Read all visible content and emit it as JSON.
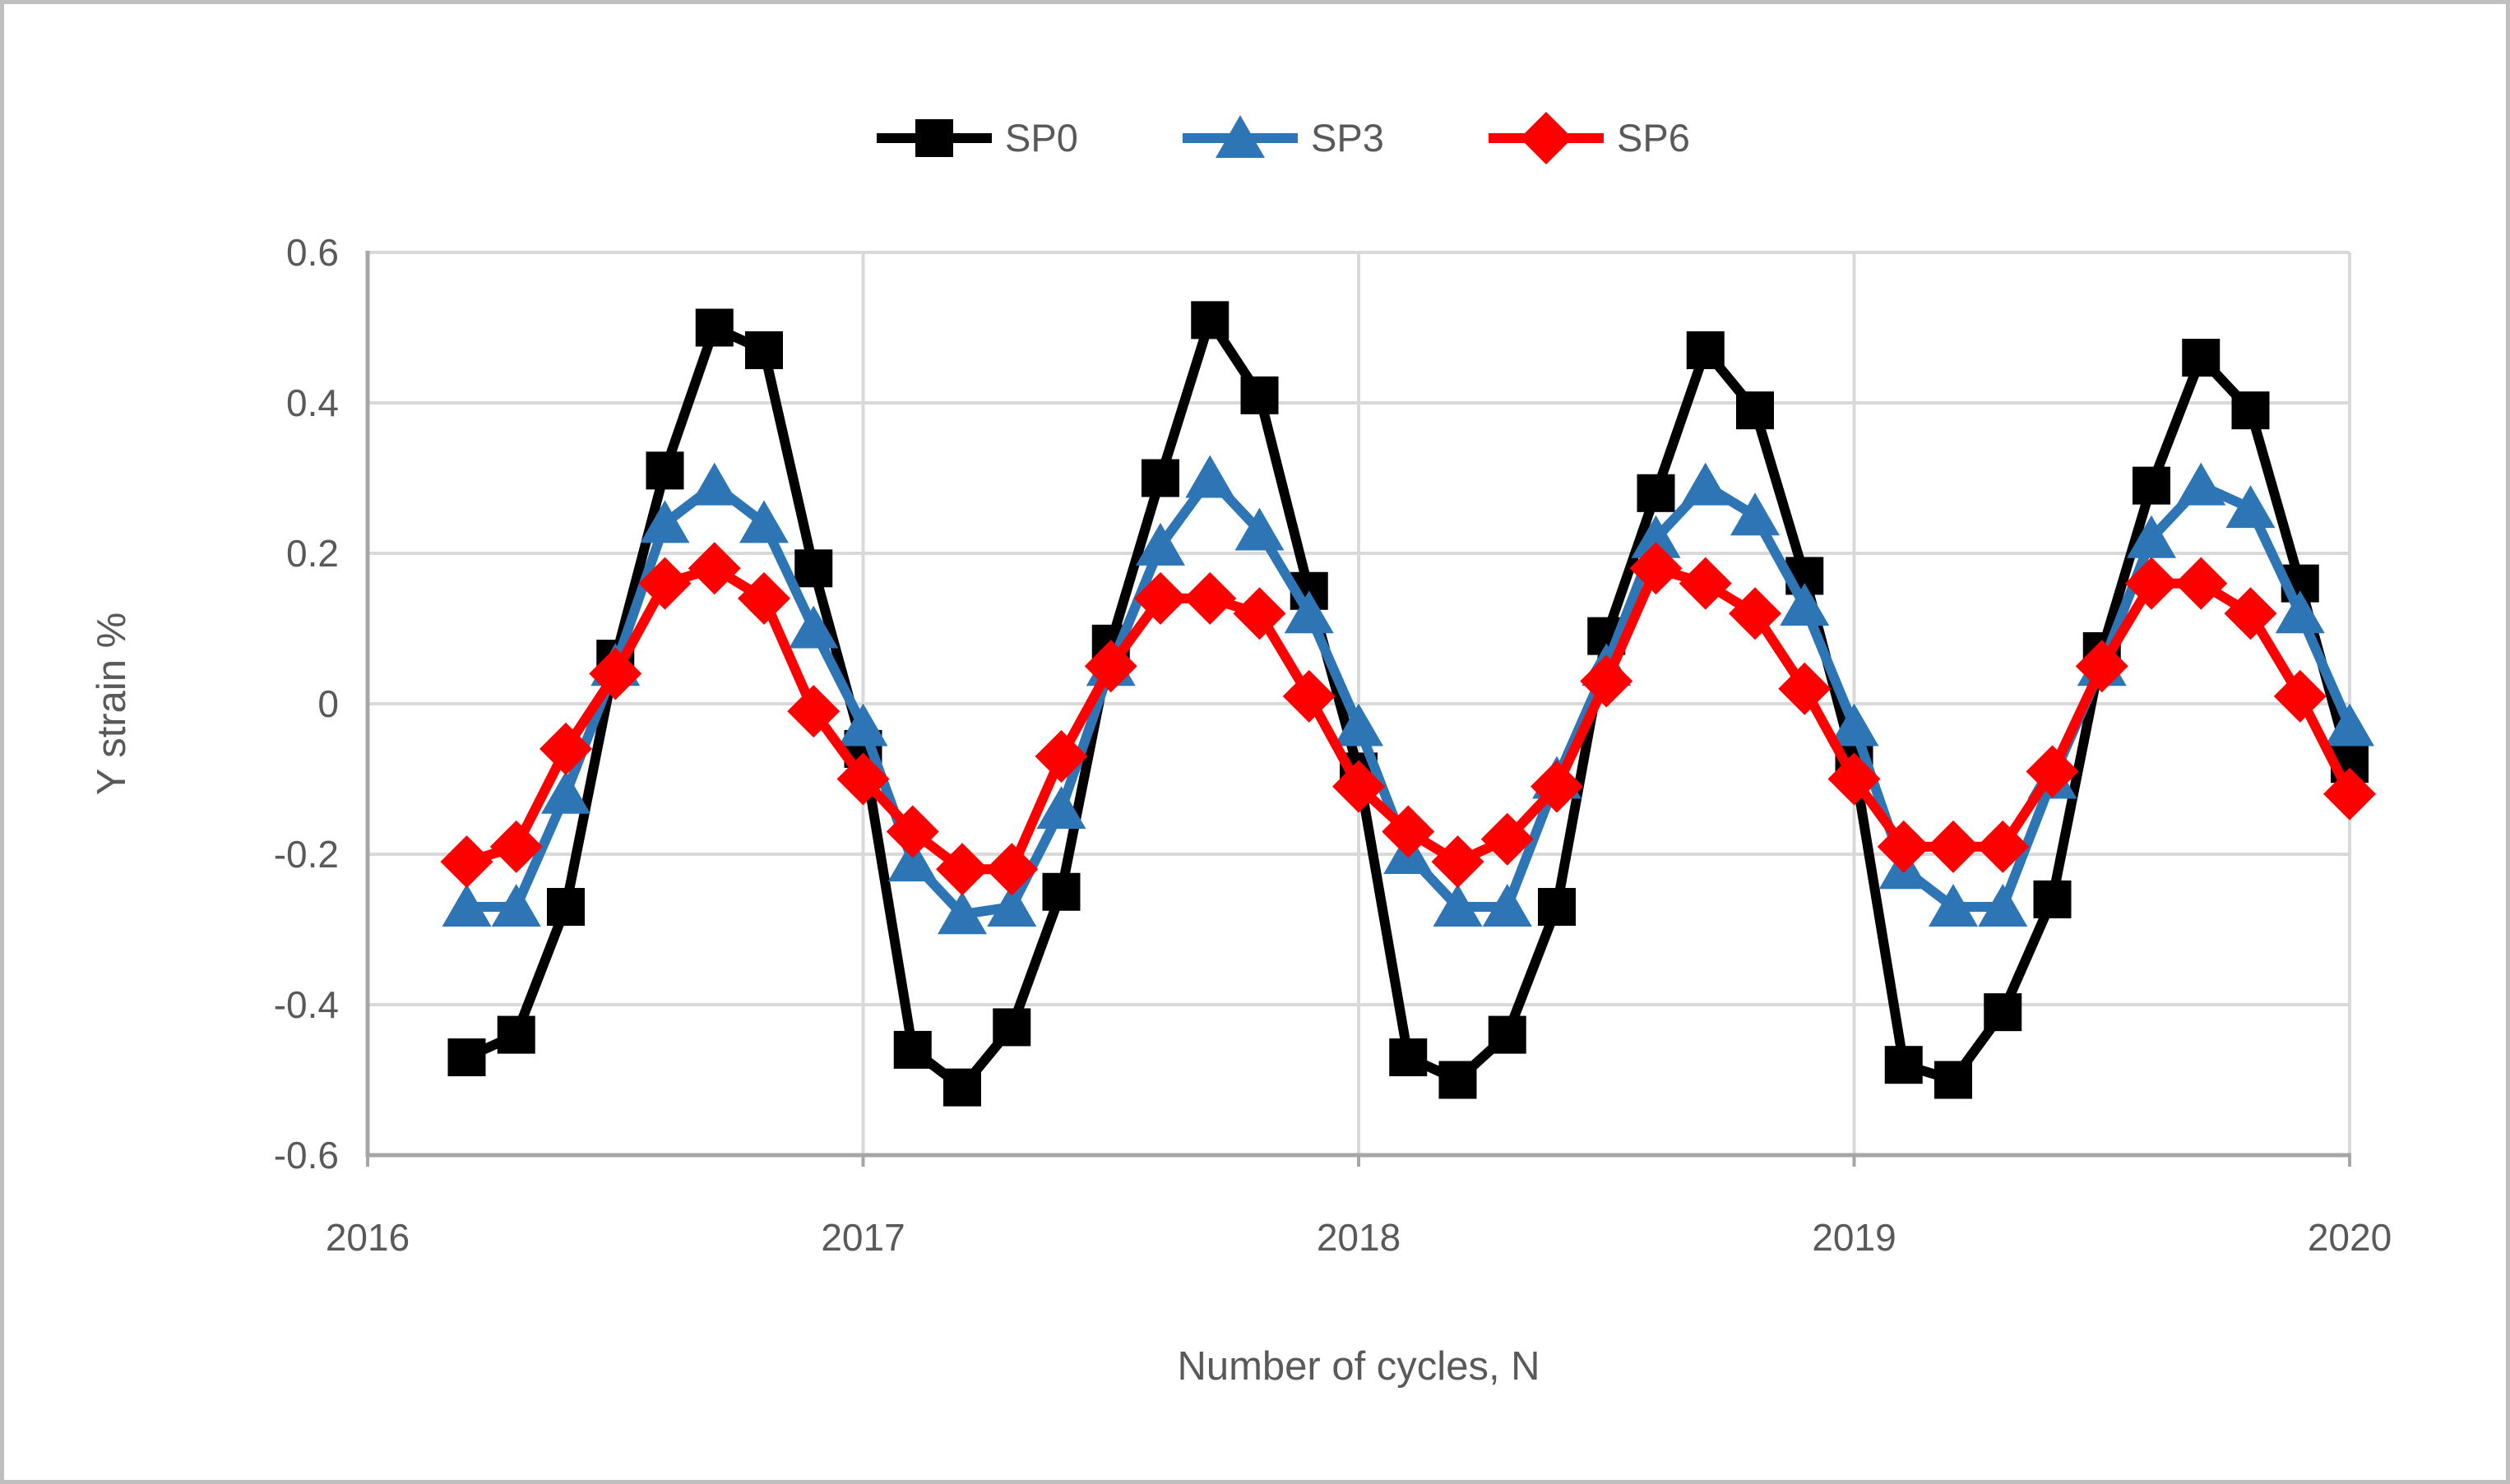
{
  "figure": {
    "background": "#FFFFFF",
    "border_color": "#BFBFBF",
    "gridline_color": "#D9D9D9",
    "axis_line_color": "#A6A6A6",
    "tick_text_color": "#595959"
  },
  "chart_data": {
    "type": "line",
    "title": "",
    "xlabel": "Number of cycles, N",
    "ylabel": "Y strain %",
    "xlim": [
      2016,
      2020
    ],
    "ylim": [
      -0.6,
      0.6
    ],
    "grid": true,
    "legend_position": "top-center",
    "xticks": [
      2016,
      2017,
      2018,
      2019,
      2020
    ],
    "xtick_labels": [
      "2016",
      "2017",
      "2018",
      "2019",
      "2020"
    ],
    "yticks": [
      0.6,
      0.4,
      0.2,
      0,
      -0.2,
      -0.4,
      -0.6
    ],
    "ytick_labels": [
      "0.6",
      "0.4",
      "0.2",
      "0",
      "-0.2",
      "-0.4",
      "-0.6"
    ],
    "x": [
      2016.2,
      2016.3,
      2016.4,
      2016.5,
      2016.6,
      2016.7,
      2016.8,
      2016.9,
      2017.0,
      2017.1,
      2017.2,
      2017.3,
      2017.4,
      2017.5,
      2017.6,
      2017.7,
      2017.8,
      2017.9,
      2018.0,
      2018.1,
      2018.2,
      2018.3,
      2018.4,
      2018.5,
      2018.6,
      2018.7,
      2018.8,
      2018.9,
      2019.0,
      2019.1,
      2019.2,
      2019.3,
      2019.4,
      2019.5,
      2019.6,
      2019.7,
      2019.8,
      2019.9,
      2020.0
    ],
    "series": [
      {
        "name": "SP0",
        "color": "#000000",
        "marker": "square",
        "values": [
          -0.47,
          -0.44,
          -0.27,
          0.06,
          0.31,
          0.5,
          0.47,
          0.18,
          -0.06,
          -0.46,
          -0.51,
          -0.43,
          -0.25,
          0.08,
          0.3,
          0.51,
          0.41,
          0.15,
          -0.09,
          -0.47,
          -0.5,
          -0.44,
          -0.27,
          0.09,
          0.28,
          0.47,
          0.39,
          0.17,
          -0.08,
          -0.48,
          -0.5,
          -0.41,
          -0.26,
          0.07,
          0.29,
          0.46,
          0.39,
          0.16,
          -0.08
        ]
      },
      {
        "name": "SP3",
        "color": "#2E75B6",
        "marker": "triangle",
        "values": [
          -0.27,
          -0.27,
          -0.12,
          0.05,
          0.24,
          0.29,
          0.24,
          0.1,
          -0.03,
          -0.21,
          -0.28,
          -0.27,
          -0.14,
          0.05,
          0.21,
          0.3,
          0.23,
          0.12,
          -0.03,
          -0.2,
          -0.27,
          -0.27,
          -0.1,
          0.05,
          0.22,
          0.29,
          0.25,
          0.13,
          -0.03,
          -0.22,
          -0.27,
          -0.27,
          -0.1,
          0.05,
          0.22,
          0.29,
          0.26,
          0.12,
          -0.03
        ]
      },
      {
        "name": "SP6",
        "color": "#FF0000",
        "marker": "diamond",
        "values": [
          -0.21,
          -0.19,
          -0.06,
          0.04,
          0.16,
          0.18,
          0.14,
          -0.01,
          -0.1,
          -0.17,
          -0.22,
          -0.22,
          -0.07,
          0.05,
          0.14,
          0.14,
          0.12,
          0.01,
          -0.11,
          -0.17,
          -0.21,
          -0.18,
          -0.11,
          0.03,
          0.18,
          0.16,
          0.12,
          0.02,
          -0.1,
          -0.19,
          -0.19,
          -0.19,
          -0.09,
          0.05,
          0.16,
          0.16,
          0.12,
          0.01,
          -0.12
        ]
      }
    ]
  }
}
